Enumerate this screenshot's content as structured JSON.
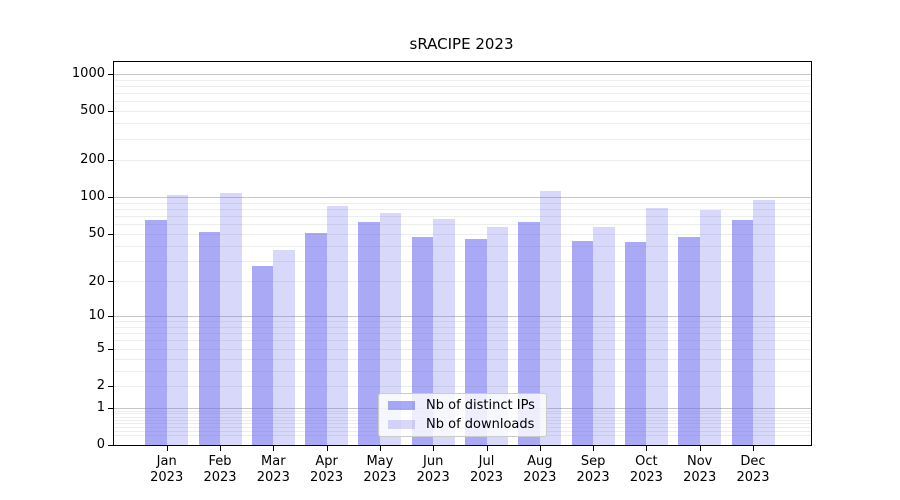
{
  "chart_data": {
    "type": "bar",
    "title": "sRACIPE 2023",
    "categories": [
      "Jan 2023",
      "Feb 2023",
      "Mar 2023",
      "Apr 2023",
      "May 2023",
      "Jun 2023",
      "Jul 2023",
      "Aug 2023",
      "Sep 2023",
      "Oct 2023",
      "Nov 2023",
      "Dec 2023"
    ],
    "series": [
      {
        "name": "Nb of distinct IPs",
        "color": "rgba(106,106,240,0.58)",
        "values": [
          65,
          52,
          27,
          51,
          63,
          47,
          45,
          63,
          44,
          43,
          47,
          65
        ]
      },
      {
        "name": "Nb of downloads",
        "color": "rgba(106,106,240,0.26)",
        "values": [
          104,
          109,
          37,
          85,
          74,
          66,
          57,
          113,
          57,
          81,
          78,
          95
        ]
      }
    ],
    "yscale": "log1p",
    "yticks": [
      0,
      1,
      2,
      5,
      10,
      20,
      50,
      100,
      200,
      500,
      1000
    ],
    "major_gridlines": [
      1,
      10,
      100,
      1000
    ],
    "ylim": [
      0,
      1250
    ],
    "grid": true,
    "legend_position": "lower center",
    "xlabel": "",
    "ylabel": ""
  }
}
